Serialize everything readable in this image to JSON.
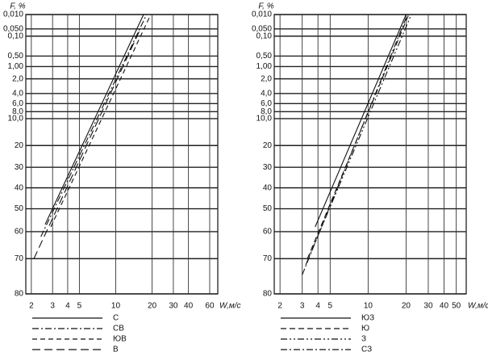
{
  "chart_data": [
    {
      "type": "line",
      "y_label": "F, %",
      "x_label": "W,м/с",
      "xscale": "log",
      "yscale": "weibull",
      "grid": true,
      "xlim": [
        1.8,
        70
      ],
      "xticks": [
        2,
        3,
        4,
        5,
        10,
        20,
        30,
        40,
        60
      ],
      "ylim": [
        80,
        0.01
      ],
      "yticks": [
        {
          "value": 0.01,
          "label": "0,010"
        },
        {
          "value": 0.05,
          "label": "0,050"
        },
        {
          "value": 0.1,
          "label": "0,10"
        },
        {
          "value": 0.5,
          "label": "0,50"
        },
        {
          "value": 1,
          "label": "1,00"
        },
        {
          "value": 2,
          "label": "2,0"
        },
        {
          "value": 4,
          "label": "4,0"
        },
        {
          "value": 6,
          "label": "6,0"
        },
        {
          "value": 8,
          "label": "8,0"
        },
        {
          "value": 10,
          "label": "10,0"
        },
        20,
        30,
        40,
        50,
        60,
        70,
        80
      ],
      "series": [
        {
          "name": "С",
          "color": "#111",
          "dash": "",
          "x": [
            2.6,
            17
          ],
          "values": [
            57,
            0.01
          ]
        },
        {
          "name": "СВ",
          "color": "#111",
          "dash": "8 3 2 3",
          "x": [
            2.4,
            18
          ],
          "values": [
            62,
            0.01
          ]
        },
        {
          "name": "ЮВ",
          "color": "#111",
          "dash": "6 4",
          "x": [
            2.9,
            19.5
          ],
          "values": [
            58,
            0.01
          ]
        },
        {
          "name": "В",
          "color": "#111",
          "dash": "10 5",
          "x": [
            2.1,
            16
          ],
          "values": [
            70,
            0.05
          ]
        }
      ]
    },
    {
      "type": "line",
      "y_label": "F, %",
      "x_label": "W,м/с",
      "xscale": "log",
      "yscale": "weibull",
      "grid": true,
      "xlim": [
        1.8,
        60
      ],
      "xticks": [
        2,
        3,
        4,
        5,
        10,
        20,
        30,
        40,
        50
      ],
      "ylim": [
        80,
        0.01
      ],
      "yticks": [
        {
          "value": 0.01,
          "label": "0,010"
        },
        {
          "value": 0.05,
          "label": "0,050"
        },
        {
          "value": 0.1,
          "label": "0,10"
        },
        {
          "value": 0.5,
          "label": "0,50"
        },
        {
          "value": 1,
          "label": "1,00"
        },
        {
          "value": 2,
          "label": "2,0"
        },
        {
          "value": 4,
          "label": "4,0"
        },
        {
          "value": 6,
          "label": "6,0"
        },
        {
          "value": 8,
          "label": "8,0"
        },
        {
          "value": 10,
          "label": "10,0"
        },
        20,
        30,
        40,
        50,
        60,
        70,
        80
      ],
      "series": [
        {
          "name": "ЮЗ",
          "color": "#111",
          "dash": "",
          "x": [
            3.8,
            20
          ],
          "values": [
            58,
            0.01
          ]
        },
        {
          "name": "Ю",
          "color": "#111",
          "dash": "7 4",
          "x": [
            3.3,
            21
          ],
          "values": [
            70,
            0.01
          ]
        },
        {
          "name": "З",
          "color": "#111",
          "dash": "8 3 2 3 2 3",
          "x": [
            3.2,
            22
          ],
          "values": [
            72,
            0.01
          ]
        },
        {
          "name": "СЗ",
          "color": "#111",
          "dash": "8 3 2 3",
          "x": [
            3.0,
            20.5
          ],
          "values": [
            75,
            0.01
          ]
        }
      ]
    }
  ]
}
